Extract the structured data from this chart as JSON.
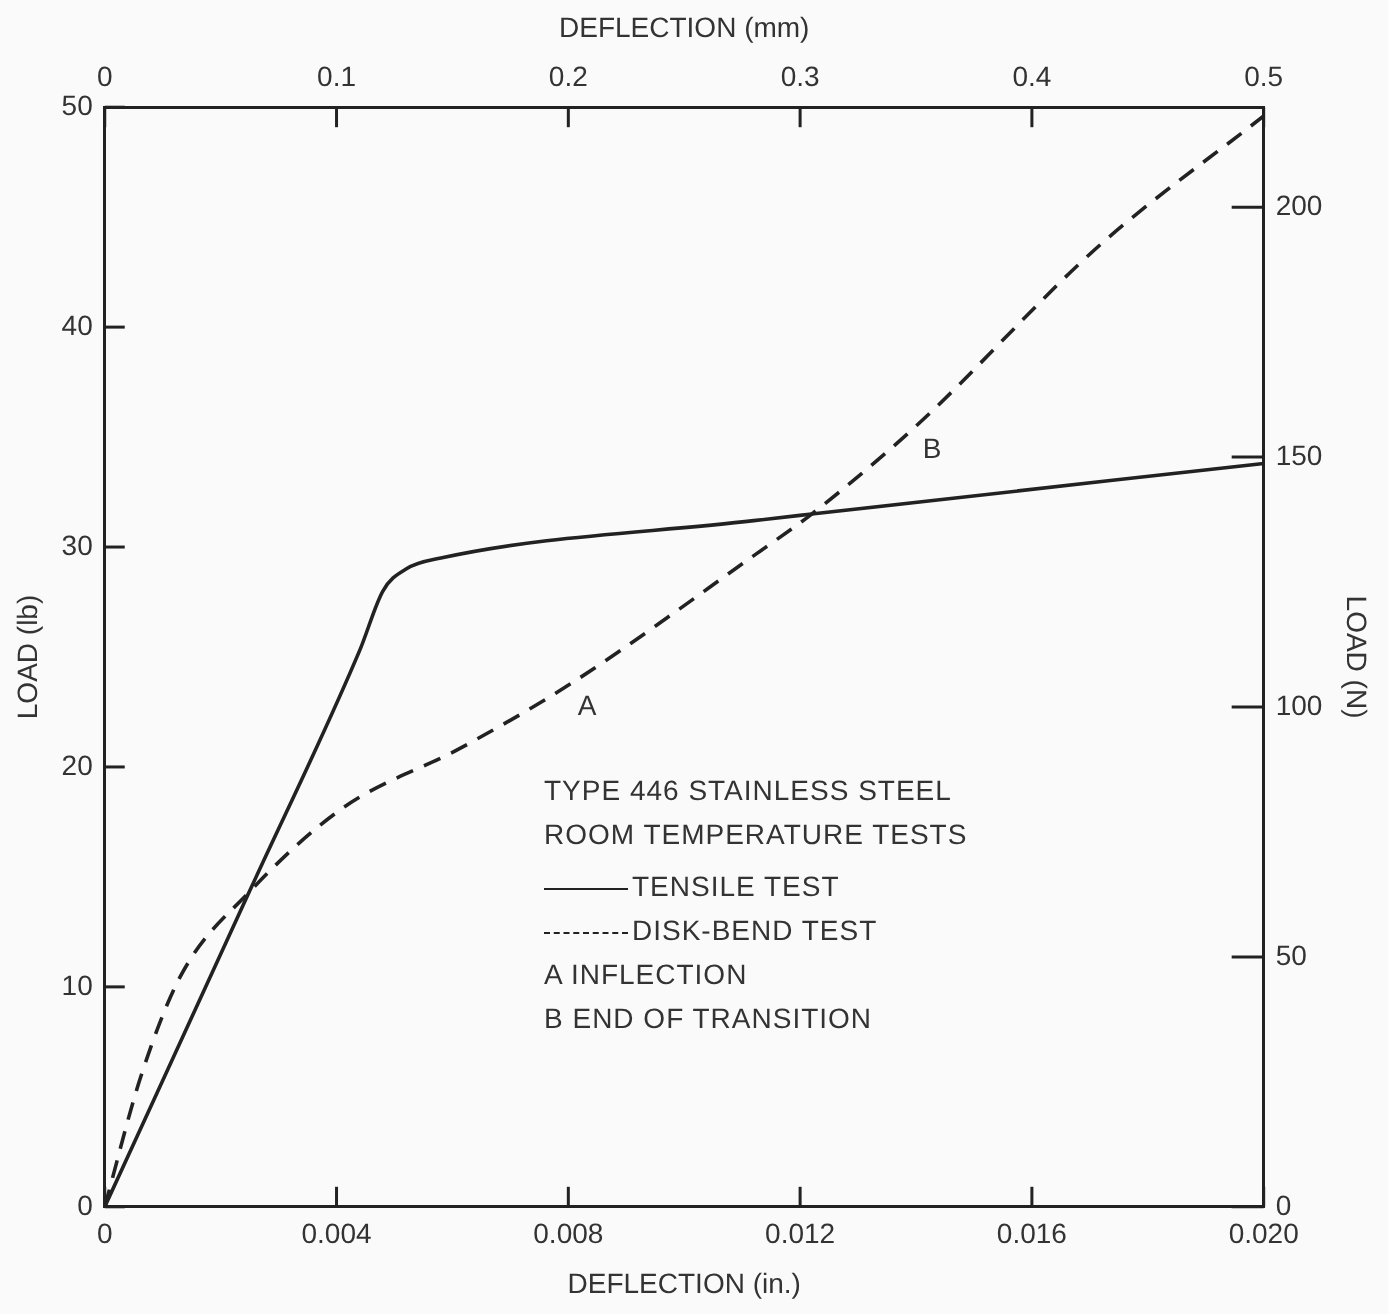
{
  "chart_data": {
    "type": "line",
    "xlabel": "DEFLECTION (in.)",
    "x2label": "DEFLECTION (mm)",
    "ylabel": "LOAD (lb)",
    "y2label": "LOAD (N)",
    "legend_title": "TYPE 446 STAINLESS STEEL\nROOM TEMPERATURE TESTS",
    "legend": "right",
    "grid": false,
    "marker": "none",
    "xlim": [
      0,
      0.02
    ],
    "xticks": [
      0,
      0.004,
      0.008,
      0.012,
      0.016,
      {
        "value": 0.02,
        "label": "0.020"
      }
    ],
    "x2lim": [
      0,
      0.5
    ],
    "x2ticks": [
      0,
      0.1,
      0.2,
      0.3,
      0.4,
      0.5
    ],
    "ylim": [
      0,
      50
    ],
    "yticks": [
      0,
      10,
      20,
      30,
      40,
      50
    ],
    "y2lim": [
      0,
      220
    ],
    "y2ticks": [
      0,
      50,
      100,
      150,
      200
    ],
    "series": [
      {
        "name": "TENSILE TEST",
        "color": "#222222",
        "line_style": "solid",
        "x": [
          0,
          0.00249,
          0.0044,
          0.0048,
          0.0052,
          0.0058,
          0.0112,
          0.0122,
          0.02
        ],
        "values": [
          0,
          14.3,
          25.3,
          28.0,
          29.0,
          29.5,
          31.2,
          31.5,
          33.8
        ]
      },
      {
        "name": "DISK-BEND TEST",
        "color": "#222222",
        "line_style": "dashed",
        "x": [
          0,
          0.00062,
          0.00131,
          0.00249,
          0.00409,
          0.00617,
          0.00805,
          0.01125,
          0.0122,
          0.014,
          0.01716,
          0.02
        ],
        "values": [
          0,
          5.9,
          10.5,
          14.3,
          18.1,
          20.9,
          23.8,
          29.7,
          31.5,
          35.5,
          43.7,
          49.6
        ]
      }
    ],
    "annotations": [
      {
        "text": "A",
        "x": 0.00805,
        "y": 23.8
      },
      {
        "text": "B",
        "x": 0.014,
        "y": 35.5
      },
      "A INFLECTION",
      "B END OF TRANSITION"
    ]
  }
}
